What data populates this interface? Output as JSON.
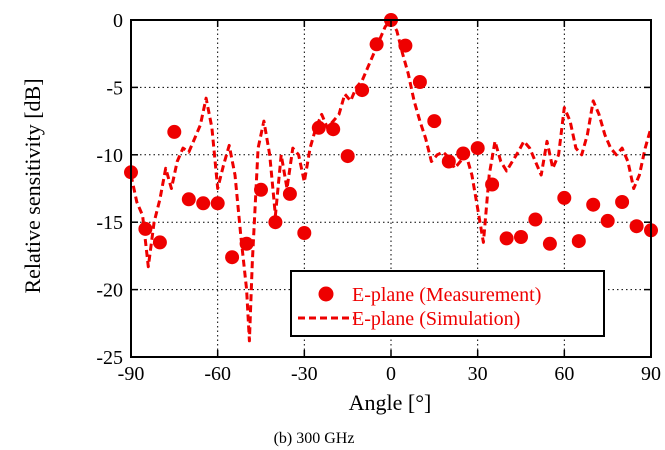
{
  "chart_data": {
    "type": "line",
    "xlabel": "Angle [°]",
    "ylabel": "Relative sensitivity [dB]",
    "caption": "(b) 300 GHz",
    "xlim": [
      -90,
      90
    ],
    "ylim": [
      -25,
      0
    ],
    "xticks": [
      -90,
      -60,
      -30,
      0,
      30,
      60,
      90
    ],
    "yticks": [
      0,
      -5,
      -10,
      -15,
      -20,
      -25
    ],
    "grid": true,
    "legend_position": "lower-right",
    "color": "#ee0000",
    "series": [
      {
        "name": "E-plane (Measurement)",
        "style": "markers",
        "x": [
          -90,
          -85,
          -80,
          -75,
          -70,
          -65,
          -60,
          -55,
          -50,
          -45,
          -40,
          -35,
          -30,
          -25,
          -20,
          -15,
          -10,
          -5,
          0,
          5,
          10,
          15,
          20,
          25,
          30,
          35,
          40,
          45,
          50,
          55,
          60,
          65,
          70,
          75,
          80,
          85,
          90
        ],
        "y": [
          -11.3,
          -15.5,
          -16.5,
          -8.3,
          -13.3,
          -13.6,
          -13.6,
          -17.6,
          -16.6,
          -12.6,
          -15.0,
          -12.9,
          -15.8,
          -8.0,
          -8.1,
          -10.1,
          -5.2,
          -1.8,
          0.0,
          -1.9,
          -4.6,
          -7.5,
          -10.5,
          -9.9,
          -9.5,
          -12.2,
          -16.2,
          -16.1,
          -14.8,
          -16.6,
          -13.2,
          -16.4,
          -13.7,
          -14.9,
          -13.5,
          -15.3,
          -15.6
        ]
      },
      {
        "name": "E-plane (Simulation)",
        "style": "dashed",
        "x": [
          -90,
          -88,
          -86,
          -84,
          -82,
          -80,
          -78,
          -76,
          -74,
          -72,
          -70,
          -68,
          -66,
          -64,
          -62,
          -60,
          -58,
          -56,
          -54,
          -52,
          -50,
          -49,
          -48,
          -46,
          -44,
          -42,
          -40,
          -38,
          -36,
          -34,
          -32,
          -30,
          -28,
          -26,
          -24,
          -22,
          -20,
          -18,
          -16,
          -14,
          -12,
          -10,
          -8,
          -6,
          -4,
          -2,
          0,
          2,
          4,
          6,
          8,
          10,
          12,
          14,
          16,
          18,
          20,
          22,
          24,
          26,
          28,
          30,
          32,
          34,
          36,
          38,
          40,
          42,
          44,
          46,
          48,
          50,
          52,
          54,
          56,
          58,
          60,
          62,
          64,
          66,
          68,
          70,
          72,
          74,
          76,
          78,
          80,
          82,
          84,
          86,
          88,
          90
        ],
        "y": [
          -11.5,
          -13.5,
          -14.5,
          -18.3,
          -15.0,
          -13.3,
          -11.0,
          -12.5,
          -10.5,
          -9.5,
          -9.8,
          -8.8,
          -7.8,
          -5.8,
          -8.0,
          -12.5,
          -10.8,
          -9.3,
          -11.5,
          -16.0,
          -20.0,
          -23.8,
          -18.0,
          -9.5,
          -7.5,
          -10.0,
          -14.5,
          -10.0,
          -12.5,
          -9.5,
          -10.0,
          -12.0,
          -9.5,
          -8.0,
          -7.0,
          -8.0,
          -7.5,
          -7.0,
          -5.5,
          -6.0,
          -5.0,
          -4.5,
          -3.5,
          -2.5,
          -1.5,
          -0.5,
          0.0,
          -0.8,
          -2.5,
          -4.0,
          -6.0,
          -7.5,
          -8.8,
          -10.5,
          -10.0,
          -9.8,
          -10.2,
          -11.0,
          -10.5,
          -10.0,
          -11.5,
          -14.0,
          -16.5,
          -11.5,
          -9.0,
          -10.5,
          -11.2,
          -10.5,
          -9.8,
          -9.0,
          -9.5,
          -10.5,
          -11.5,
          -9.0,
          -11.0,
          -10.0,
          -6.5,
          -7.5,
          -9.5,
          -10.0,
          -8.5,
          -6.0,
          -7.0,
          -8.5,
          -9.5,
          -10.0,
          -9.5,
          -10.5,
          -12.5,
          -11.5,
          -9.5,
          -8.0
        ]
      }
    ]
  }
}
